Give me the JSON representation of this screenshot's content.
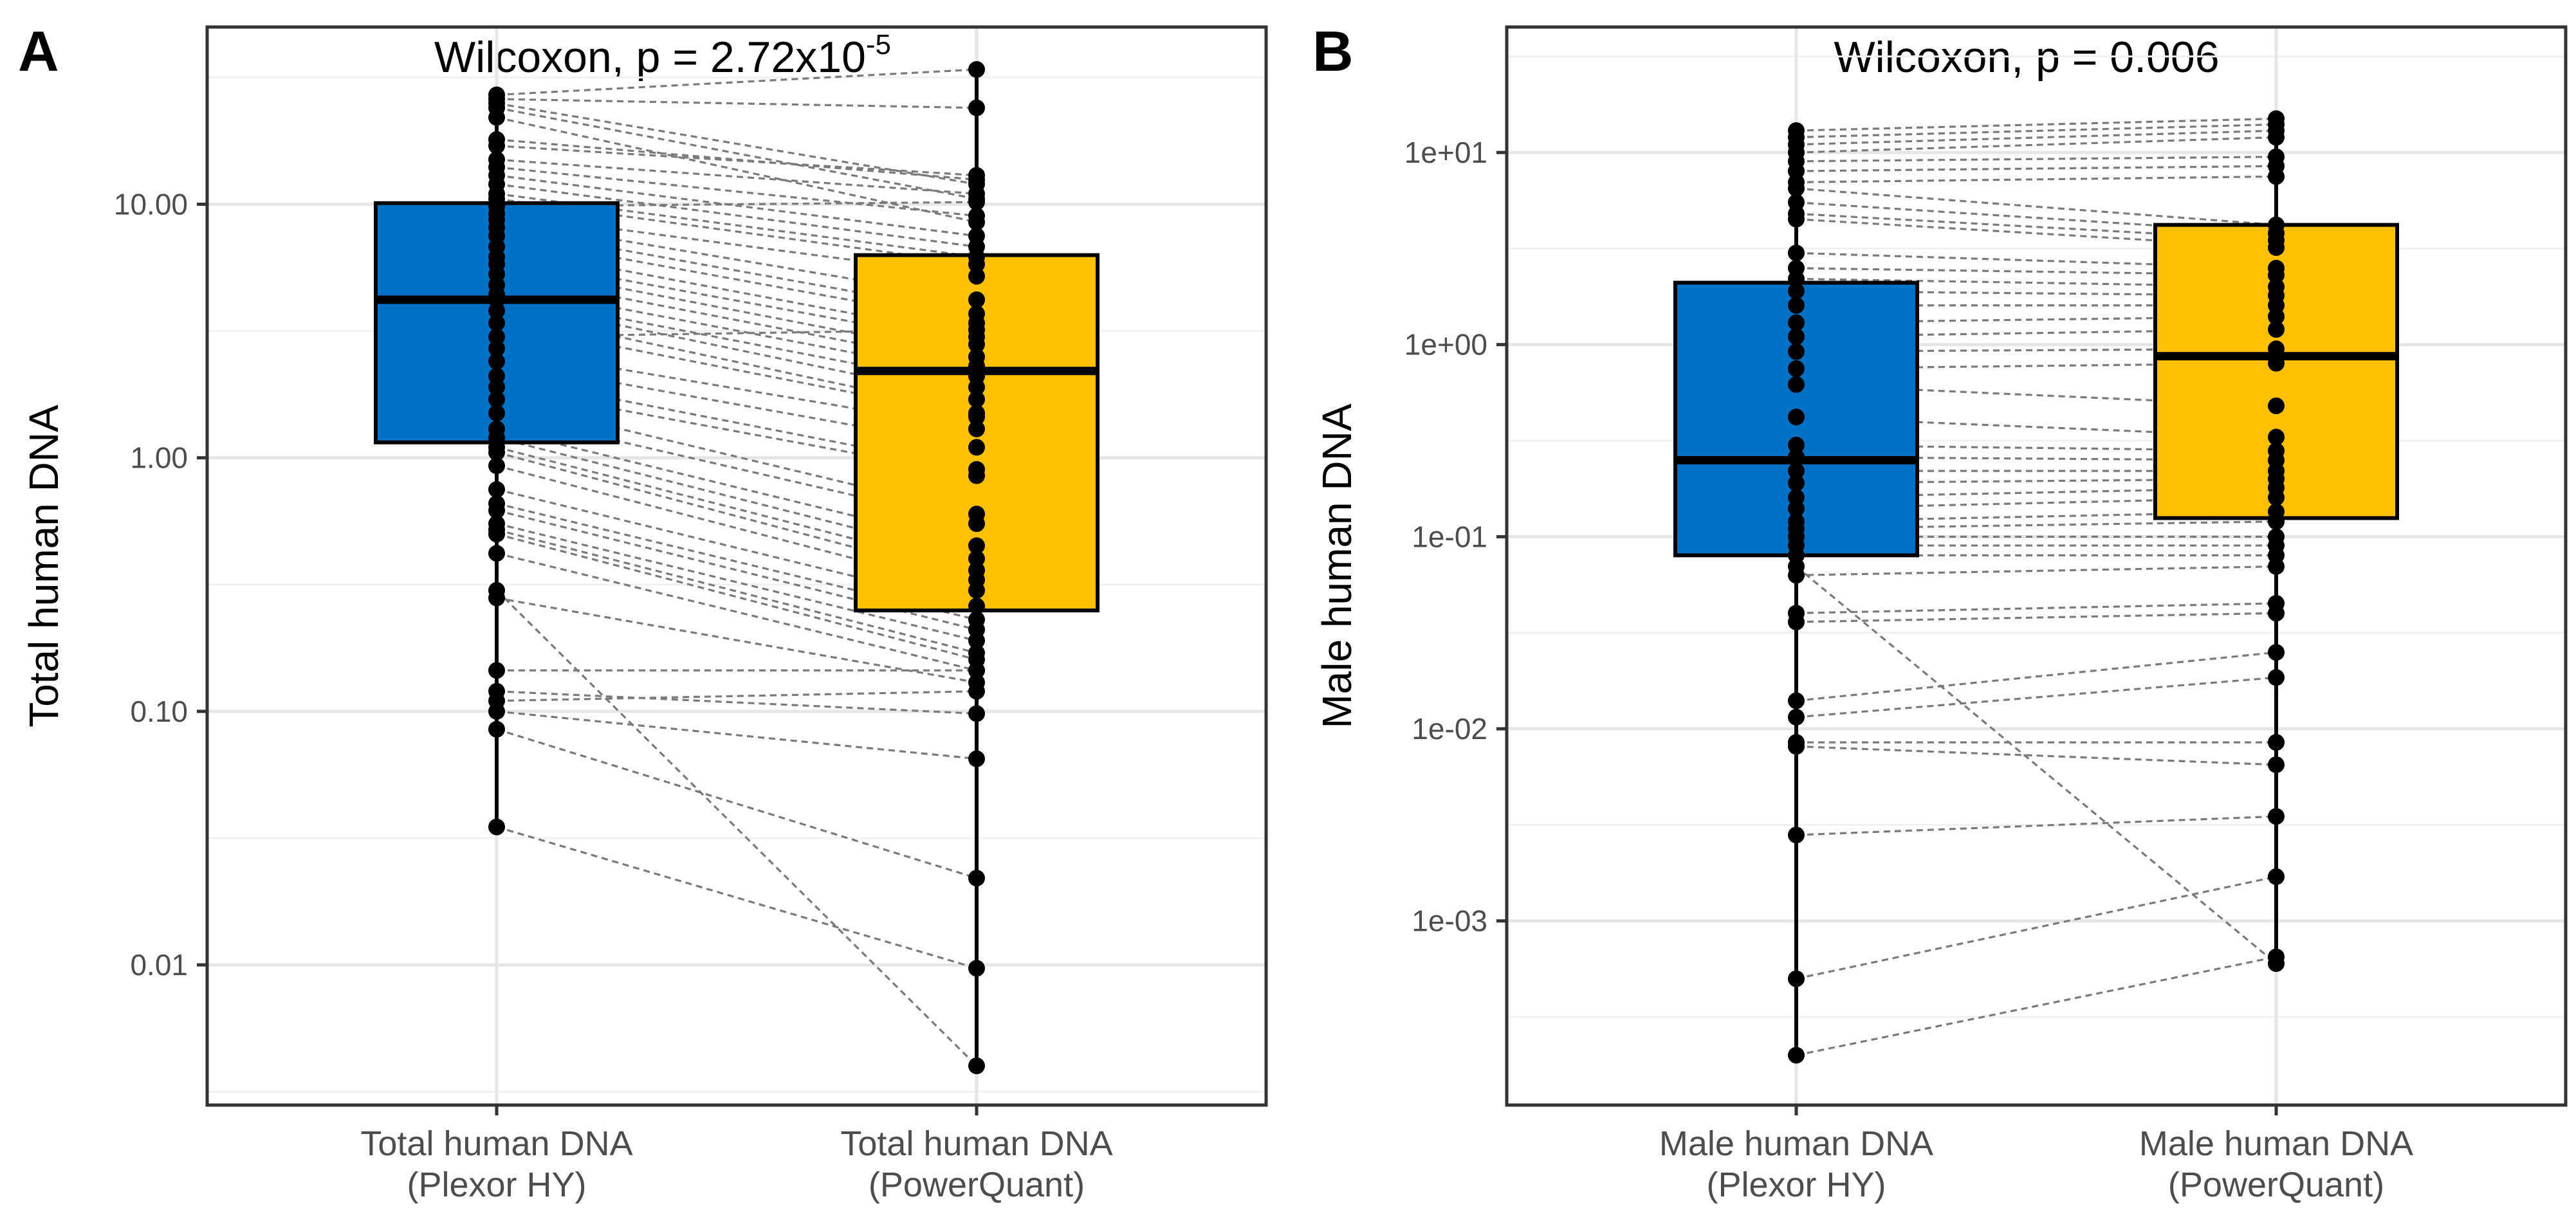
{
  "chart_data": [
    {
      "panel": "A",
      "type": "boxplot-paired",
      "title": "Wilcoxon, p = 2.72x10",
      "title_sup": "-5",
      "ylabel": "Total human DNA",
      "yscale": "log10",
      "ylim": [
        0.0028,
        50
      ],
      "yticks": [
        0.01,
        0.1,
        1,
        10
      ],
      "ytick_labels": [
        "0.01",
        "0.10",
        "1.00",
        "10.00"
      ],
      "categories": [
        {
          "line1": "Total human DNA",
          "line2": "(Plexor HY)"
        },
        {
          "line1": "Total human DNA",
          "line2": "(PowerQuant)"
        }
      ],
      "colors": [
        "#0072c6",
        "#ffc000"
      ],
      "boxes": [
        {
          "q1": 1.15,
          "median": 4.2,
          "q3": 10.1,
          "whisker_low": 0.035,
          "whisker_high": 27
        },
        {
          "q1": 0.25,
          "median": 2.2,
          "q3": 6.3,
          "whisker_low": 0.004,
          "whisker_high": 34
        }
      ],
      "pairs": [
        [
          27,
          34
        ],
        [
          26,
          24
        ],
        [
          25,
          12
        ],
        [
          24,
          10.5
        ],
        [
          22,
          8.5
        ],
        [
          18,
          12.5
        ],
        [
          17,
          13
        ],
        [
          15,
          11
        ],
        [
          14,
          9
        ],
        [
          13,
          7.5
        ],
        [
          12,
          6.8
        ],
        [
          11,
          6.2
        ],
        [
          10.5,
          5.8
        ],
        [
          9.8,
          10.2
        ],
        [
          9.2,
          5.2
        ],
        [
          8.7,
          4.2
        ],
        [
          8.1,
          3.7
        ],
        [
          7.5,
          3.4
        ],
        [
          6.8,
          3.0
        ],
        [
          6.2,
          2.8
        ],
        [
          5.8,
          2.5
        ],
        [
          5.3,
          2.3
        ],
        [
          4.8,
          2.1
        ],
        [
          4.4,
          1.9
        ],
        [
          4.2,
          1.7
        ],
        [
          3.8,
          1.5
        ],
        [
          3.4,
          1.45
        ],
        [
          3.0,
          3.2
        ],
        [
          2.7,
          1.3
        ],
        [
          2.4,
          1.1
        ],
        [
          2.1,
          0.9
        ],
        [
          1.9,
          0.85
        ],
        [
          1.7,
          0.6
        ],
        [
          1.5,
          0.55
        ],
        [
          1.3,
          0.45
        ],
        [
          1.2,
          0.4
        ],
        [
          1.1,
          0.36
        ],
        [
          1.05,
          0.33
        ],
        [
          0.93,
          0.3
        ],
        [
          0.75,
          0.26
        ],
        [
          0.66,
          0.23
        ],
        [
          0.62,
          0.21
        ],
        [
          0.55,
          0.19
        ],
        [
          0.52,
          0.17
        ],
        [
          0.5,
          0.16
        ],
        [
          0.42,
          0.145
        ],
        [
          0.28,
          0.13
        ],
        [
          0.145,
          0.145
        ],
        [
          0.12,
          0.098
        ],
        [
          0.11,
          0.12
        ],
        [
          0.1,
          0.065
        ],
        [
          0.085,
          0.022
        ],
        [
          0.035,
          0.0097
        ],
        [
          0.3,
          0.004
        ]
      ]
    },
    {
      "panel": "B",
      "type": "boxplot-paired",
      "title": "Wilcoxon, p = 0.006",
      "ylabel": "Male human DNA",
      "yscale": "log10",
      "ylim": [
        0.00011,
        45
      ],
      "yticks": [
        0.001,
        0.01,
        0.1,
        1,
        10
      ],
      "ytick_labels": [
        "1e-03",
        "1e-02",
        "1e-01",
        "1e+00",
        "1e+01"
      ],
      "categories": [
        {
          "line1": "Male human DNA",
          "line2": "(Plexor HY)"
        },
        {
          "line1": "Male human DNA",
          "line2": "(PowerQuant)"
        }
      ],
      "colors": [
        "#0072c6",
        "#ffc000"
      ],
      "boxes": [
        {
          "q1": 0.08,
          "median": 0.25,
          "q3": 2.1,
          "whisker_low": 0.0002,
          "whisker_high": 13
        },
        {
          "q1": 0.125,
          "median": 0.87,
          "q3": 4.2,
          "whisker_low": 0.00065,
          "whisker_high": 15
        }
      ],
      "pairs": [
        [
          13,
          15
        ],
        [
          12,
          14
        ],
        [
          11,
          13
        ],
        [
          10,
          12
        ],
        [
          9,
          9.5
        ],
        [
          8,
          8.5
        ],
        [
          7,
          7.5
        ],
        [
          6.5,
          4.2
        ],
        [
          5.5,
          3.8
        ],
        [
          4.8,
          3.5
        ],
        [
          4.5,
          3.2
        ],
        [
          3.0,
          2.5
        ],
        [
          2.5,
          2.3
        ],
        [
          2.2,
          2.0
        ],
        [
          1.9,
          1.8
        ],
        [
          1.6,
          1.6
        ],
        [
          1.3,
          1.4
        ],
        [
          1.1,
          1.2
        ],
        [
          0.92,
          0.95
        ],
        [
          0.75,
          0.8
        ],
        [
          0.62,
          0.48
        ],
        [
          0.42,
          0.33
        ],
        [
          0.3,
          0.28
        ],
        [
          0.26,
          0.25
        ],
        [
          0.22,
          0.22
        ],
        [
          0.19,
          0.2
        ],
        [
          0.16,
          0.18
        ],
        [
          0.14,
          0.16
        ],
        [
          0.12,
          0.135
        ],
        [
          0.11,
          0.12
        ],
        [
          0.1,
          0.1
        ],
        [
          0.09,
          0.09
        ],
        [
          0.08,
          0.08
        ],
        [
          0.07,
          0.0006
        ],
        [
          0.063,
          0.07
        ],
        [
          0.04,
          0.045
        ],
        [
          0.036,
          0.04
        ],
        [
          0.014,
          0.025
        ],
        [
          0.0115,
          0.0185
        ],
        [
          0.0081,
          0.0065
        ],
        [
          0.0028,
          0.0035
        ],
        [
          0.0005,
          0.0017
        ],
        [
          0.0002,
          0.00065
        ],
        [
          0.0085,
          0.0085
        ]
      ]
    }
  ]
}
